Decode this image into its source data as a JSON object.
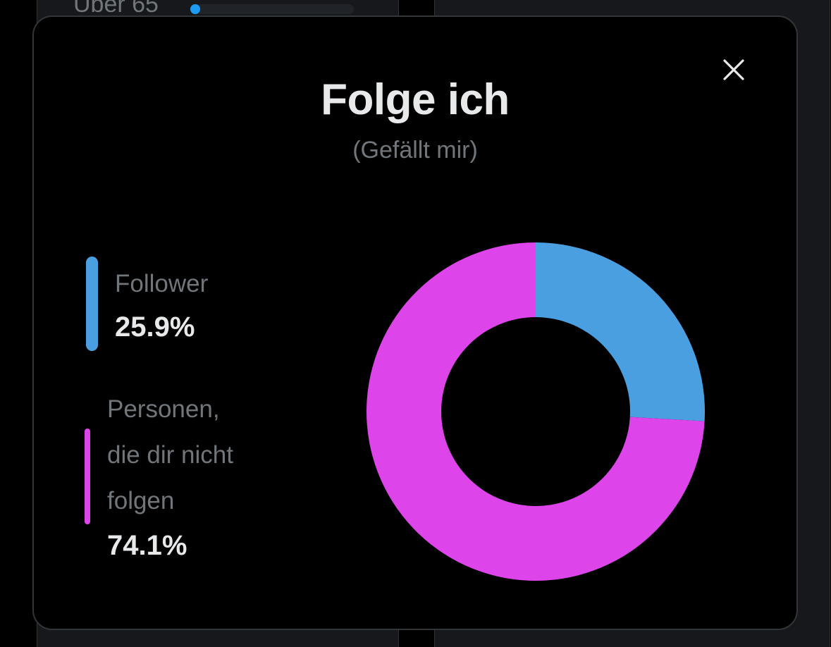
{
  "background": {
    "row_label": "Über 65"
  },
  "modal": {
    "title": "Folge ich",
    "subtitle": "(Gefällt mir)",
    "close_icon": "close-icon"
  },
  "legend": [
    {
      "label": "Follower",
      "value": "25.9%",
      "color": "#4a9fe0"
    },
    {
      "label_lines": [
        "Personen,",
        "die dir nicht",
        "folgen"
      ],
      "value": "74.1%",
      "color": "#dd45ea"
    }
  ],
  "chart_data": {
    "type": "pie",
    "donut": true,
    "categories": [
      "Follower",
      "Personen, die dir nicht folgen"
    ],
    "values": [
      25.9,
      74.1
    ],
    "colors": [
      "#4a9fe0",
      "#dd45ea"
    ]
  }
}
